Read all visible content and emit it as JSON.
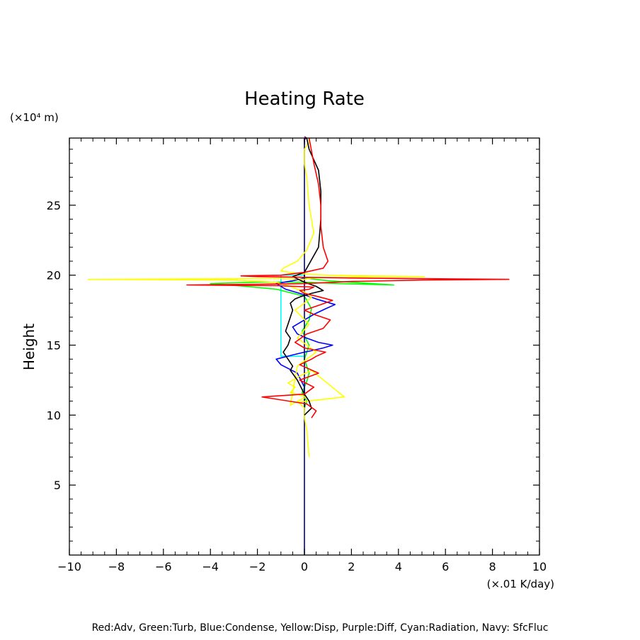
{
  "chart_data": {
    "type": "line",
    "title": "Heating Rate",
    "ylabel": "Height",
    "y_unit": "(×10⁴ m)",
    "x_unit": "(×.01 K/day)",
    "xlim": [
      -10,
      10
    ],
    "ylim": [
      0,
      29.8
    ],
    "x_ticks": [
      -10,
      -8,
      -6,
      -4,
      -2,
      0,
      2,
      4,
      6,
      8,
      10
    ],
    "x_tick_labels": [
      "−10",
      "−8",
      "−6",
      "−4",
      "−2",
      "0",
      "2",
      "4",
      "6",
      "8",
      "10"
    ],
    "y_ticks": [
      5,
      10,
      15,
      20,
      25
    ],
    "y_tick_labels": [
      "5",
      "10",
      "15",
      "20",
      "25"
    ],
    "x_minor_step": 0.5,
    "y_minor_step": 1,
    "grid": false,
    "legend_text": "Red:Adv, Green:Turb, Blue:Condense, Yellow:Disp, Purple:Diff, Cyan:Radiation, Navy: SfcFluc",
    "series": [
      {
        "name": "Diff",
        "color": "#800080",
        "x": [
          0,
          0,
          0.1,
          0
        ],
        "y": [
          29.5,
          29.7,
          29.8,
          29.9
        ]
      },
      {
        "name": "Radiation",
        "color": "#00ffff",
        "x": [
          0,
          0,
          -1.0,
          -1.0,
          -1.0,
          -1.0,
          -1.0,
          -1.0,
          0,
          0
        ],
        "y": [
          13.5,
          14.2,
          14.2,
          16.0,
          17.5,
          19.0,
          19.9,
          20.0,
          20.0,
          20.2
        ]
      },
      {
        "name": "Turb",
        "color": "#00ff00",
        "x": [
          0,
          0.1,
          -0.1,
          0.1,
          0.2,
          0,
          0.2,
          -0.1,
          0.2,
          0.3,
          0,
          -1.2,
          -2.5,
          -4.0,
          -2.0,
          0,
          1.5,
          3.8,
          1.0,
          0,
          0
        ],
        "y": [
          10.5,
          11.0,
          11.6,
          12.4,
          13.0,
          14.0,
          15.0,
          16.0,
          16.8,
          17.6,
          18.5,
          19.0,
          19.2,
          19.4,
          19.5,
          19.5,
          19.4,
          19.3,
          19.6,
          19.8,
          20.2
        ]
      },
      {
        "name": "Condense",
        "color": "#0000ff",
        "x": [
          0,
          0,
          -0.3,
          -1.0,
          -1.2,
          -0.5,
          0,
          0.3,
          0.8,
          1.2,
          0.6,
          0.1,
          -0.3,
          -0.5,
          0,
          0.4,
          0.9,
          1.3,
          0.5,
          0,
          -0.8,
          -1.2,
          -0.5,
          0,
          0
        ],
        "y": [
          10,
          12.0,
          13.0,
          13.6,
          14.0,
          14.3,
          14.5,
          14.6,
          14.8,
          15.0,
          15.2,
          15.5,
          15.8,
          16.3,
          16.8,
          17.2,
          17.6,
          17.9,
          18.3,
          18.6,
          19.0,
          19.4,
          19.6,
          19.8,
          20.2
        ]
      },
      {
        "name": "SfcFluc",
        "color": "#000080",
        "x": [
          0,
          0
        ],
        "y": [
          0,
          29.8
        ]
      },
      {
        "name": "Disp",
        "color": "#ffff00",
        "x": [
          0.2,
          0.1,
          0,
          0,
          -0.3,
          0.1,
          -0.6,
          -0.4,
          -0.7,
          -0.2,
          0.3,
          1.7,
          -0.4,
          -0.6,
          -0.3,
          0.5,
          -0.3,
          0.2,
          -0.1,
          -0.4,
          0,
          0.3,
          0,
          -0.6,
          -1.2,
          -3.0,
          -9.2,
          -6.0,
          -3.0,
          -1.0,
          0,
          0.3,
          1.5,
          3.0,
          5.1,
          2.5,
          1.0,
          -0.2,
          -1.0,
          -0.9,
          -0.3,
          0.1,
          0.4,
          0.2,
          0.1,
          0,
          0,
          0.2,
          0.2
        ],
        "y": [
          7.0,
          9.0,
          9.8,
          10.5,
          11.0,
          11.3,
          11.6,
          12.0,
          12.3,
          12.8,
          13.2,
          11.3,
          10.9,
          10.7,
          13.5,
          14.5,
          15.5,
          16.5,
          17.0,
          17.5,
          18.0,
          18.4,
          18.8,
          19.2,
          19.5,
          19.65,
          19.7,
          19.72,
          19.74,
          19.76,
          19.7,
          19.8,
          19.85,
          19.9,
          19.9,
          19.95,
          20.0,
          20.1,
          20.3,
          20.5,
          21.0,
          21.8,
          23.0,
          25.0,
          27.0,
          28.0,
          29.0,
          29.5,
          29.8
        ]
      },
      {
        "name": "Black",
        "color": "#000000",
        "x": [
          0,
          0.3,
          0.2,
          0,
          -0.3,
          -0.6,
          -0.5,
          -0.7,
          -0.9,
          -0.7,
          -0.6,
          -0.8,
          -0.7,
          -0.6,
          -0.5,
          -0.6,
          -0.4,
          -0.1,
          0.3,
          0.8,
          0.5,
          0,
          -0.5,
          0,
          0.6,
          0.7,
          0.7,
          0.6,
          0.2,
          0.1
        ],
        "y": [
          10.0,
          10.5,
          11.0,
          11.5,
          12.5,
          13.2,
          13.5,
          14.0,
          14.5,
          15.0,
          15.5,
          16.0,
          16.5,
          17.0,
          17.5,
          18.0,
          18.3,
          18.5,
          18.7,
          18.9,
          19.2,
          19.5,
          19.9,
          20.2,
          22.0,
          24.0,
          26.0,
          27.5,
          29.0,
          29.8
        ]
      },
      {
        "name": "Adv",
        "color": "#ff0000",
        "x": [
          0.3,
          0.5,
          0.1,
          -1.8,
          0,
          0.4,
          -0.2,
          0.6,
          -0.2,
          0.3,
          0.5,
          0.9,
          0,
          -0.4,
          0.1,
          0.8,
          1.1,
          0.4,
          0,
          0.7,
          1.2,
          0.5,
          0,
          -0.2,
          0.2,
          0.4,
          -0.4,
          -1.2,
          -3.5,
          -5.0,
          -2.0,
          0,
          2.0,
          5.0,
          8.7,
          5.0,
          2.0,
          0,
          -2.0,
          -2.7,
          -1.0,
          0,
          0.8,
          1.0,
          0.8,
          0.7,
          0.7,
          0.6,
          0.4,
          0.2
        ],
        "y": [
          9.8,
          10.3,
          10.8,
          11.3,
          11.5,
          12.0,
          12.5,
          13.0,
          13.6,
          14.0,
          14.2,
          14.5,
          14.8,
          15.2,
          15.8,
          16.2,
          16.8,
          17.2,
          17.5,
          17.9,
          18.2,
          18.5,
          18.7,
          18.9,
          19.0,
          19.15,
          19.2,
          19.25,
          19.28,
          19.3,
          19.35,
          19.4,
          19.55,
          19.65,
          19.7,
          19.75,
          19.8,
          19.85,
          19.9,
          19.95,
          20.0,
          20.2,
          20.5,
          21.0,
          22.0,
          23.5,
          25.0,
          26.5,
          28.0,
          29.8
        ]
      }
    ]
  }
}
